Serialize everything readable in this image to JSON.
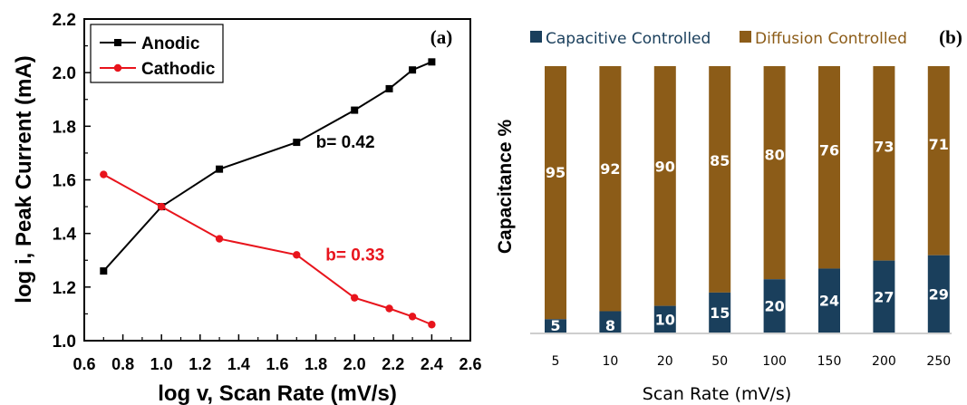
{
  "chart_data": [
    {
      "type": "line",
      "panel_label": "(a)",
      "title": "",
      "xlabel": "log v, Scan Rate (mV/s)",
      "ylabel": "log i, Peak Current (mA)",
      "xlim": [
        0.6,
        2.6
      ],
      "ylim": [
        1.0,
        2.2
      ],
      "xticks": [
        "0.6",
        "0.8",
        "1.0",
        "1.2",
        "1.4",
        "1.6",
        "1.8",
        "2.0",
        "2.2",
        "2.4",
        "2.6"
      ],
      "yticks": [
        "1.0",
        "1.2",
        "1.4",
        "1.6",
        "1.8",
        "2.0",
        "2.2"
      ],
      "grid": false,
      "legend_position": "top-left",
      "series": [
        {
          "name": "Anodic",
          "color": "#000000",
          "marker": "square",
          "x": [
            0.7,
            1.0,
            1.3,
            1.7,
            2.0,
            2.18,
            2.3,
            2.4
          ],
          "y": [
            1.26,
            1.5,
            1.64,
            1.74,
            1.86,
            1.94,
            2.01,
            2.04
          ]
        },
        {
          "name": "Cathodic",
          "color": "#e8141c",
          "marker": "circle",
          "x": [
            0.7,
            1.0,
            1.3,
            1.7,
            2.0,
            2.18,
            2.3,
            2.4
          ],
          "y": [
            1.62,
            1.5,
            1.38,
            1.32,
            1.16,
            1.12,
            1.09,
            1.06
          ]
        }
      ],
      "annotations": [
        {
          "text": "b= 0.42",
          "color": "#000000",
          "x": 1.8,
          "y": 1.72
        },
        {
          "text": "b= 0.33",
          "color": "#e8141c",
          "x": 1.85,
          "y": 1.3
        }
      ]
    },
    {
      "type": "bar",
      "stacked": true,
      "panel_label": "(b)",
      "title": "",
      "xlabel": "Scan Rate (mV/s)",
      "ylabel": "Capacitance %",
      "categories": [
        "5",
        "10",
        "20",
        "50",
        "100",
        "150",
        "200",
        "250"
      ],
      "ylim": [
        0,
        100
      ],
      "grid": false,
      "legend_position": "top",
      "series": [
        {
          "name": "Capacitive Controlled",
          "color": "#1a3f5c",
          "values": [
            5,
            8,
            10,
            15,
            20,
            24,
            27,
            29
          ]
        },
        {
          "name": "Diffusion Controlled",
          "color": "#8c5c18",
          "values": [
            95,
            92,
            90,
            85,
            80,
            76,
            73,
            71
          ]
        }
      ]
    }
  ]
}
